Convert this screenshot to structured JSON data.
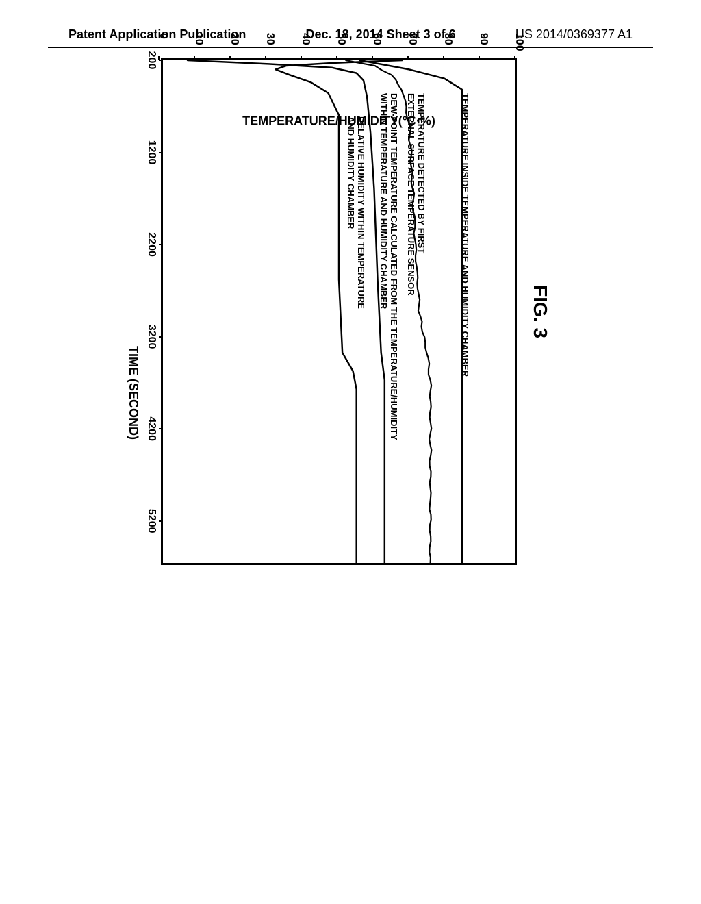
{
  "header": {
    "left": "Patent Application Publication",
    "center": "Dec. 18, 2014  Sheet 3 of 6",
    "right": "US 2014/0369377 A1"
  },
  "figure": {
    "title": "FIG. 3",
    "ylabel": "TEMPERATURE/HUMIDITY(°C·%)",
    "xlabel": "TIME (SECOND)",
    "ylim": [
      0,
      100
    ],
    "xlim": [
      200,
      5700
    ],
    "ytick_step": 10,
    "xticks": [
      200,
      1200,
      2200,
      3200,
      4200,
      5200
    ],
    "background_color": "#ffffff",
    "axis_color": "#000000",
    "series": {
      "temp_inside": {
        "label": "TEMPERATURE INSIDE TEMPERATURE AND HUMIDITY CHAMBER",
        "label_pos": {
          "x": 48,
          "y": 66
        },
        "color": "#000000",
        "width": 2.5,
        "points": [
          [
            200,
            56
          ],
          [
            300,
            70
          ],
          [
            400,
            80
          ],
          [
            520,
            85
          ],
          [
            700,
            85
          ],
          [
            5700,
            85
          ]
        ]
      },
      "temp_ext_sensor": {
        "label": "TEMPERATURE DETECTED BY FIRST\nEXTERNAL SURFACE TEMPERATURE SENSOR",
        "label_pos": {
          "x": 48,
          "y": 130
        },
        "color": "#000000",
        "width": 2.2,
        "wavy": true,
        "points": [
          [
            200,
            52
          ],
          [
            260,
            60
          ],
          [
            360,
            65
          ],
          [
            520,
            68
          ],
          [
            900,
            70
          ],
          [
            1600,
            71
          ],
          [
            2400,
            72
          ],
          [
            3000,
            73
          ],
          [
            3400,
            75
          ],
          [
            3700,
            76
          ],
          [
            5700,
            76
          ]
        ]
      },
      "dew_point": {
        "label": "DEW-POINT TEMPERATURE CALCULATED FROM THE TEMPERATURE/HUMIDITY\nWITHIN TEMPERATURE AND HUMIDITY CHAMBER",
        "label_pos": {
          "x": 48,
          "y": 170
        },
        "color": "#000000",
        "width": 2.5,
        "points": [
          [
            200,
            7
          ],
          [
            240,
            30
          ],
          [
            280,
            48
          ],
          [
            340,
            55
          ],
          [
            420,
            57
          ],
          [
            600,
            58
          ],
          [
            1000,
            59
          ],
          [
            1600,
            60
          ],
          [
            2600,
            61
          ],
          [
            3400,
            62
          ],
          [
            3700,
            63
          ],
          [
            5700,
            63
          ]
        ]
      },
      "rel_humidity": {
        "label": "RELATIVE HUMIDITY WITHIN TEMPERATURE\nAND HUMIDITY CHAMBER",
        "label_pos": {
          "x": 82,
          "y": 218
        },
        "color": "#000000",
        "width": 2.5,
        "points": [
          [
            200,
            68
          ],
          [
            230,
            48
          ],
          [
            260,
            35
          ],
          [
            300,
            32
          ],
          [
            360,
            36
          ],
          [
            440,
            42
          ],
          [
            560,
            47
          ],
          [
            800,
            50
          ],
          [
            1400,
            50
          ],
          [
            2600,
            50
          ],
          [
            3400,
            51
          ],
          [
            3600,
            54
          ],
          [
            3800,
            55
          ],
          [
            5700,
            55
          ]
        ]
      }
    }
  }
}
